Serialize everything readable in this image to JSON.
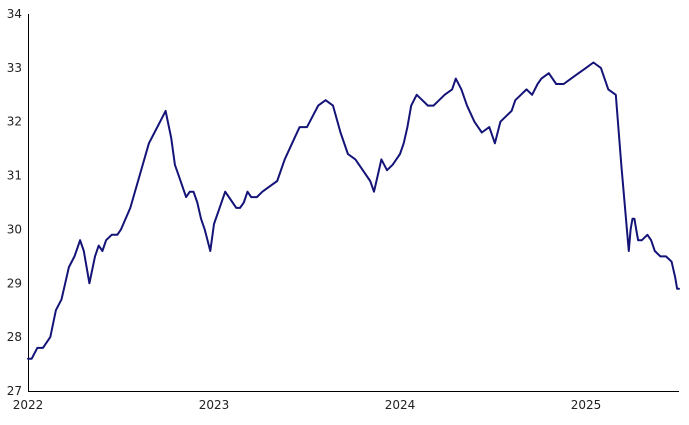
{
  "chart_data": {
    "type": "line",
    "title": "",
    "xlabel": "",
    "ylabel": "",
    "grid": false,
    "line_color": "#141478",
    "axis_color": "#000000",
    "x_ticks": [
      "2022",
      "2023",
      "2024",
      "2025"
    ],
    "y_ticks": [
      "27",
      "28",
      "29",
      "30",
      "31",
      "32",
      "33",
      "34"
    ],
    "x_range": [
      2022.0,
      2025.5
    ],
    "ylim": [
      27,
      34
    ],
    "series": [
      {
        "x": [
          2022.0,
          2022.02,
          2022.05,
          2022.08,
          2022.12,
          2022.15,
          2022.18,
          2022.2,
          2022.22,
          2022.25,
          2022.28,
          2022.3,
          2022.33,
          2022.36,
          2022.38,
          2022.4,
          2022.42,
          2022.45,
          2022.48,
          2022.5,
          2022.55,
          2022.6,
          2022.65,
          2022.68,
          2022.71,
          2022.74,
          2022.77,
          2022.79,
          2022.81,
          2022.83,
          2022.85,
          2022.87,
          2022.89,
          2022.91,
          2022.93,
          2022.95,
          2022.98,
          2023.0,
          2023.03,
          2023.06,
          2023.1,
          2023.12,
          2023.14,
          2023.16,
          2023.18,
          2023.2,
          2023.23,
          2023.26,
          2023.3,
          2023.34,
          2023.38,
          2023.42,
          2023.46,
          2023.5,
          2023.53,
          2023.56,
          2023.6,
          2023.64,
          2023.68,
          2023.72,
          2023.76,
          2023.8,
          2023.84,
          2023.86,
          2023.88,
          2023.9,
          2023.93,
          2023.96,
          2023.98,
          2024.0,
          2024.02,
          2024.04,
          2024.06,
          2024.09,
          2024.12,
          2024.15,
          2024.18,
          2024.21,
          2024.24,
          2024.28,
          2024.3,
          2024.33,
          2024.36,
          2024.4,
          2024.44,
          2024.48,
          2024.51,
          2024.54,
          2024.57,
          2024.6,
          2024.62,
          2024.65,
          2024.68,
          2024.71,
          2024.74,
          2024.76,
          2024.8,
          2024.84,
          2024.88,
          2024.92,
          2024.96,
          2025.0,
          2025.04,
          2025.08,
          2025.12,
          2025.16,
          2025.19,
          2025.22,
          2025.23,
          2025.24,
          2025.25,
          2025.26,
          2025.27,
          2025.28,
          2025.3,
          2025.33,
          2025.35,
          2025.37,
          2025.4,
          2025.43,
          2025.46,
          2025.48,
          2025.49,
          2025.5
        ],
        "y": [
          27.6,
          27.6,
          27.8,
          27.8,
          28.0,
          28.5,
          28.7,
          29.0,
          29.3,
          29.5,
          29.8,
          29.6,
          29.0,
          29.5,
          29.7,
          29.6,
          29.8,
          29.9,
          29.9,
          30.0,
          30.4,
          31.0,
          31.6,
          31.8,
          32.0,
          32.2,
          31.7,
          31.2,
          31.0,
          30.8,
          30.6,
          30.7,
          30.7,
          30.5,
          30.2,
          30.0,
          29.6,
          30.1,
          30.4,
          30.7,
          30.5,
          30.4,
          30.4,
          30.5,
          30.7,
          30.6,
          30.6,
          30.7,
          30.8,
          30.9,
          31.3,
          31.6,
          31.9,
          31.9,
          32.1,
          32.3,
          32.4,
          32.3,
          31.8,
          31.4,
          31.3,
          31.1,
          30.9,
          30.7,
          31.0,
          31.3,
          31.1,
          31.2,
          31.3,
          31.4,
          31.6,
          31.9,
          32.3,
          32.5,
          32.4,
          32.3,
          32.3,
          32.4,
          32.5,
          32.6,
          32.8,
          32.6,
          32.3,
          32.0,
          31.8,
          31.9,
          31.6,
          32.0,
          32.1,
          32.2,
          32.4,
          32.5,
          32.6,
          32.5,
          32.7,
          32.8,
          32.9,
          32.7,
          32.7,
          32.8,
          32.9,
          33.0,
          33.1,
          33.0,
          32.6,
          32.5,
          31.2,
          30.0,
          29.6,
          30.0,
          30.2,
          30.2,
          30.0,
          29.8,
          29.8,
          29.9,
          29.8,
          29.6,
          29.5,
          29.5,
          29.4,
          29.1,
          28.9,
          28.9
        ]
      }
    ]
  }
}
